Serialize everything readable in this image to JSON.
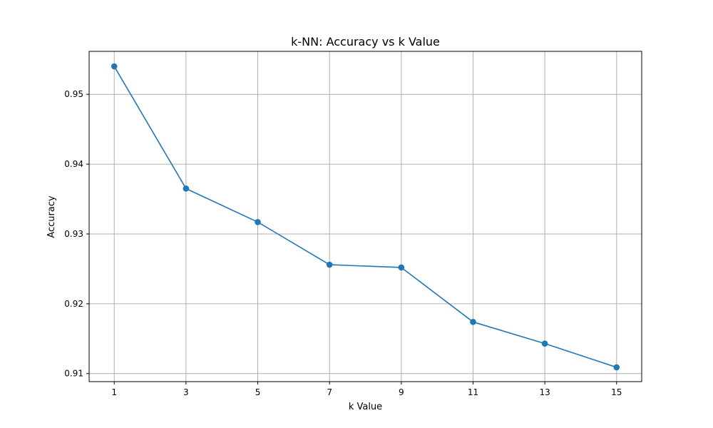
{
  "chart_data": {
    "type": "line",
    "title": "k-NN: Accuracy vs k Value",
    "xlabel": "k Value",
    "ylabel": "Accuracy",
    "x": [
      1,
      3,
      5,
      7,
      9,
      11,
      13,
      15
    ],
    "series": [
      {
        "values": [
          0.954,
          0.9365,
          0.9317,
          0.9256,
          0.9252,
          0.9174,
          0.9143,
          0.9109
        ],
        "color": "#1f77b4",
        "marker": "circle"
      }
    ],
    "xticks": [
      "1",
      "3",
      "5",
      "7",
      "9",
      "11",
      "13",
      "15"
    ],
    "yticks": [
      "0.91",
      "0.92",
      "0.93",
      "0.94",
      "0.95"
    ],
    "ytick_values": [
      0.91,
      0.92,
      0.93,
      0.94,
      0.95
    ],
    "xlim": [
      0.3,
      15.7
    ],
    "ylim": [
      0.90885,
      0.95615
    ],
    "grid": true,
    "legend": "none"
  }
}
